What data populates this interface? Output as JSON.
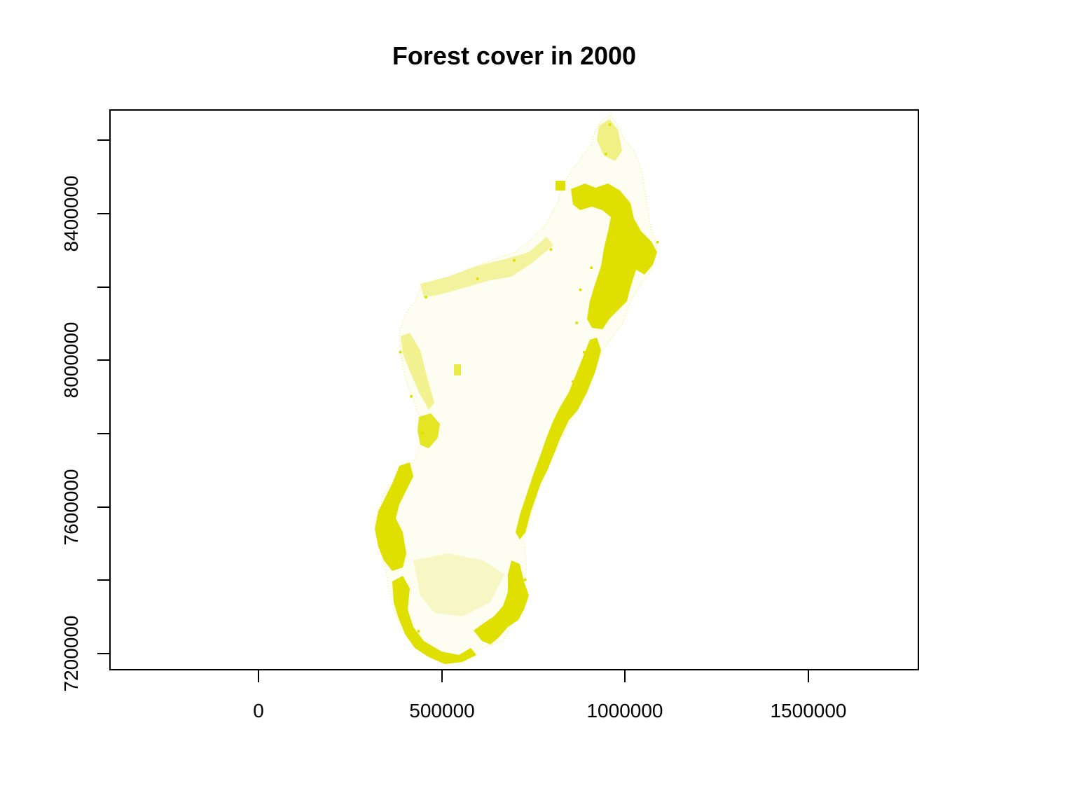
{
  "title": "Forest cover in 2000",
  "colors": {
    "forest": "#E0E000",
    "axis": "#000000",
    "background": "#FFFFFF"
  },
  "chart_data": {
    "type": "raster-map",
    "title": "Forest cover in 2000",
    "xlabel": "",
    "ylabel": "",
    "xlim": [
      -400000,
      1800000
    ],
    "ylim": [
      7155000,
      8680000
    ],
    "x_ticks": [
      0,
      500000,
      1000000,
      1500000
    ],
    "x_tick_labels": [
      "0",
      "500000",
      "1000000",
      "1500000"
    ],
    "y_ticks": [
      7200000,
      7400000,
      7600000,
      7800000,
      8000000,
      8200000,
      8400000,
      8600000
    ],
    "y_tick_labels": [
      "7200000",
      "",
      "7600000",
      "",
      "8000000",
      "",
      "8400000",
      ""
    ],
    "grid": false,
    "legend": "none",
    "series": [
      {
        "values": [
          {
            "x": 930000,
            "y": 8430000
          },
          {
            "x": 950000,
            "y": 8560000
          },
          {
            "x": 960000,
            "y": 8640000
          },
          {
            "x": 1060000,
            "y": 8290000
          },
          {
            "x": 1090000,
            "y": 8320000
          },
          {
            "x": 910000,
            "y": 8250000
          },
          {
            "x": 880000,
            "y": 8190000
          },
          {
            "x": 870000,
            "y": 8100000
          },
          {
            "x": 890000,
            "y": 8020000
          },
          {
            "x": 860000,
            "y": 7940000
          },
          {
            "x": 820000,
            "y": 7850000
          },
          {
            "x": 790000,
            "y": 7760000
          },
          {
            "x": 750000,
            "y": 7650000
          },
          {
            "x": 730000,
            "y": 7560000
          },
          {
            "x": 730000,
            "y": 7400000
          },
          {
            "x": 660000,
            "y": 7260000
          },
          {
            "x": 580000,
            "y": 7200000
          },
          {
            "x": 440000,
            "y": 7260000
          },
          {
            "x": 380000,
            "y": 7360000
          },
          {
            "x": 330000,
            "y": 7520000
          },
          {
            "x": 380000,
            "y": 7630000
          },
          {
            "x": 450000,
            "y": 7800000
          },
          {
            "x": 420000,
            "y": 7900000
          },
          {
            "x": 390000,
            "y": 8020000
          },
          {
            "x": 460000,
            "y": 8170000
          },
          {
            "x": 600000,
            "y": 8220000
          },
          {
            "x": 700000,
            "y": 8270000
          },
          {
            "x": 800000,
            "y": 8300000
          }
        ]
      }
    ]
  }
}
